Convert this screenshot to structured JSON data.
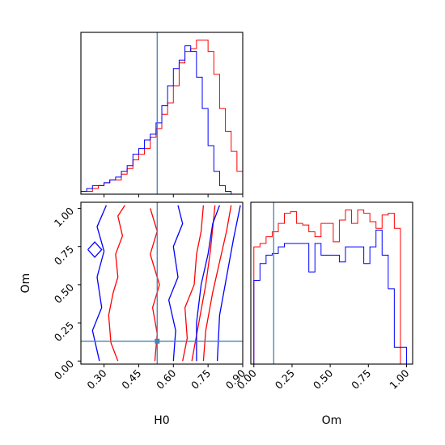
{
  "chart_data": [
    {
      "type": "histogram",
      "panel": "H0 marginal",
      "xlim": [
        0.2,
        0.9
      ],
      "truth": 0.53,
      "colors": {
        "red": "#ff0000",
        "blue": "#0000ff",
        "truth": "#4682b4"
      },
      "bin_edges": [
        0.2,
        0.225,
        0.25,
        0.275,
        0.3,
        0.325,
        0.35,
        0.375,
        0.4,
        0.425,
        0.45,
        0.475,
        0.5,
        0.525,
        0.55,
        0.575,
        0.6,
        0.625,
        0.65,
        0.675,
        0.7,
        0.725,
        0.75,
        0.775,
        0.8,
        0.825,
        0.85,
        0.875,
        0.9
      ],
      "series": [
        {
          "color": "red",
          "values": [
            1,
            1,
            2,
            3,
            4,
            5,
            5,
            7,
            9,
            12,
            14,
            16,
            20,
            23,
            28,
            32,
            38,
            46,
            50,
            51,
            54,
            54,
            50,
            42,
            30,
            22,
            15,
            8
          ]
        },
        {
          "color": "blue",
          "values": [
            1,
            2,
            3,
            3,
            4,
            5,
            6,
            8,
            10,
            14,
            16,
            19,
            21,
            25,
            31,
            38,
            44,
            47,
            52,
            50,
            41,
            30,
            17,
            8,
            3,
            1,
            0,
            0
          ]
        }
      ]
    },
    {
      "type": "contour",
      "panel": "H0 vs Om",
      "xlabel": "H0",
      "ylabel": "Om",
      "xlim": [
        0.2,
        0.9
      ],
      "ylim": [
        -0.02,
        1.04
      ],
      "xticks": [
        "0.30",
        "0.45",
        "0.60",
        "0.75",
        "0.90"
      ],
      "yticks": [
        "0.00",
        "0.25",
        "0.50",
        "0.75",
        "1.00"
      ],
      "truth": {
        "H0": 0.53,
        "Om": 0.13
      },
      "series": [
        {
          "color": "red",
          "contours": [
            [
              [
                0.36,
                0.0
              ],
              [
                0.33,
                0.12
              ],
              [
                0.32,
                0.3
              ],
              [
                0.34,
                0.45
              ],
              [
                0.36,
                0.55
              ],
              [
                0.35,
                0.7
              ],
              [
                0.38,
                0.82
              ],
              [
                0.36,
                0.95
              ],
              [
                0.39,
                1.02
              ]
            ],
            [
              [
                0.52,
                0.0
              ],
              [
                0.53,
                0.18
              ],
              [
                0.51,
                0.35
              ],
              [
                0.54,
                0.5
              ],
              [
                0.5,
                0.7
              ],
              [
                0.53,
                0.85
              ],
              [
                0.5,
                1.0
              ]
            ],
            [
              [
                0.64,
                0.0
              ],
              [
                0.66,
                0.15
              ],
              [
                0.65,
                0.35
              ],
              [
                0.69,
                0.5
              ],
              [
                0.7,
                0.7
              ],
              [
                0.72,
                0.85
              ],
              [
                0.73,
                1.02
              ]
            ],
            [
              [
                0.73,
                0.0
              ],
              [
                0.74,
                0.2
              ],
              [
                0.77,
                0.45
              ],
              [
                0.8,
                0.65
              ],
              [
                0.83,
                0.85
              ],
              [
                0.85,
                1.02
              ]
            ],
            [
              [
                0.68,
                0.0
              ],
              [
                0.71,
                0.25
              ],
              [
                0.74,
                0.5
              ],
              [
                0.76,
                0.72
              ],
              [
                0.78,
                1.02
              ]
            ]
          ]
        },
        {
          "color": "blue",
          "contours": [
            [
              [
                0.28,
                0.0
              ],
              [
                0.25,
                0.2
              ],
              [
                0.29,
                0.35
              ],
              [
                0.27,
                0.55
              ],
              [
                0.3,
                0.72
              ],
              [
                0.27,
                0.88
              ],
              [
                0.31,
                1.02
              ]
            ],
            [
              [
                0.23,
                0.73
              ],
              [
                0.26,
                0.78
              ],
              [
                0.29,
                0.73
              ],
              [
                0.26,
                0.68
              ],
              [
                0.23,
                0.73
              ]
            ],
            [
              [
                0.6,
                0.0
              ],
              [
                0.61,
                0.2
              ],
              [
                0.58,
                0.4
              ],
              [
                0.62,
                0.55
              ],
              [
                0.6,
                0.75
              ],
              [
                0.64,
                0.9
              ],
              [
                0.62,
                1.02
              ]
            ],
            [
              [
                0.7,
                0.0
              ],
              [
                0.7,
                0.25
              ],
              [
                0.72,
                0.5
              ],
              [
                0.75,
                0.7
              ],
              [
                0.77,
                0.9
              ],
              [
                0.8,
                1.02
              ]
            ],
            [
              [
                0.79,
                0.0
              ],
              [
                0.8,
                0.3
              ],
              [
                0.83,
                0.55
              ],
              [
                0.86,
                0.8
              ],
              [
                0.89,
                1.02
              ]
            ]
          ]
        }
      ]
    },
    {
      "type": "histogram",
      "panel": "Om marginal",
      "xlabel": "Om",
      "xlim": [
        -0.02,
        1.04
      ],
      "xticks": [
        "0.00",
        "0.25",
        "0.50",
        "0.75",
        "1.00"
      ],
      "truth": 0.13,
      "bin_edges": [
        0.0,
        0.04,
        0.08,
        0.12,
        0.16,
        0.2,
        0.24,
        0.28,
        0.32,
        0.36,
        0.4,
        0.44,
        0.48,
        0.52,
        0.56,
        0.6,
        0.64,
        0.68,
        0.72,
        0.76,
        0.8,
        0.84,
        0.88,
        0.92,
        0.96,
        1.0
      ],
      "series": [
        {
          "color": "red",
          "values": [
            70,
            72,
            76,
            79,
            84,
            90,
            91,
            84,
            83,
            79,
            76,
            84,
            84,
            73,
            86,
            92,
            84,
            92,
            90,
            85,
            81,
            89,
            90,
            81,
            0
          ]
        },
        {
          "color": "blue",
          "values": [
            50,
            60,
            65,
            66,
            70,
            72,
            72,
            72,
            72,
            55,
            72,
            65,
            65,
            65,
            61,
            70,
            70,
            70,
            60,
            70,
            80,
            65,
            45,
            10,
            10
          ]
        }
      ]
    }
  ]
}
